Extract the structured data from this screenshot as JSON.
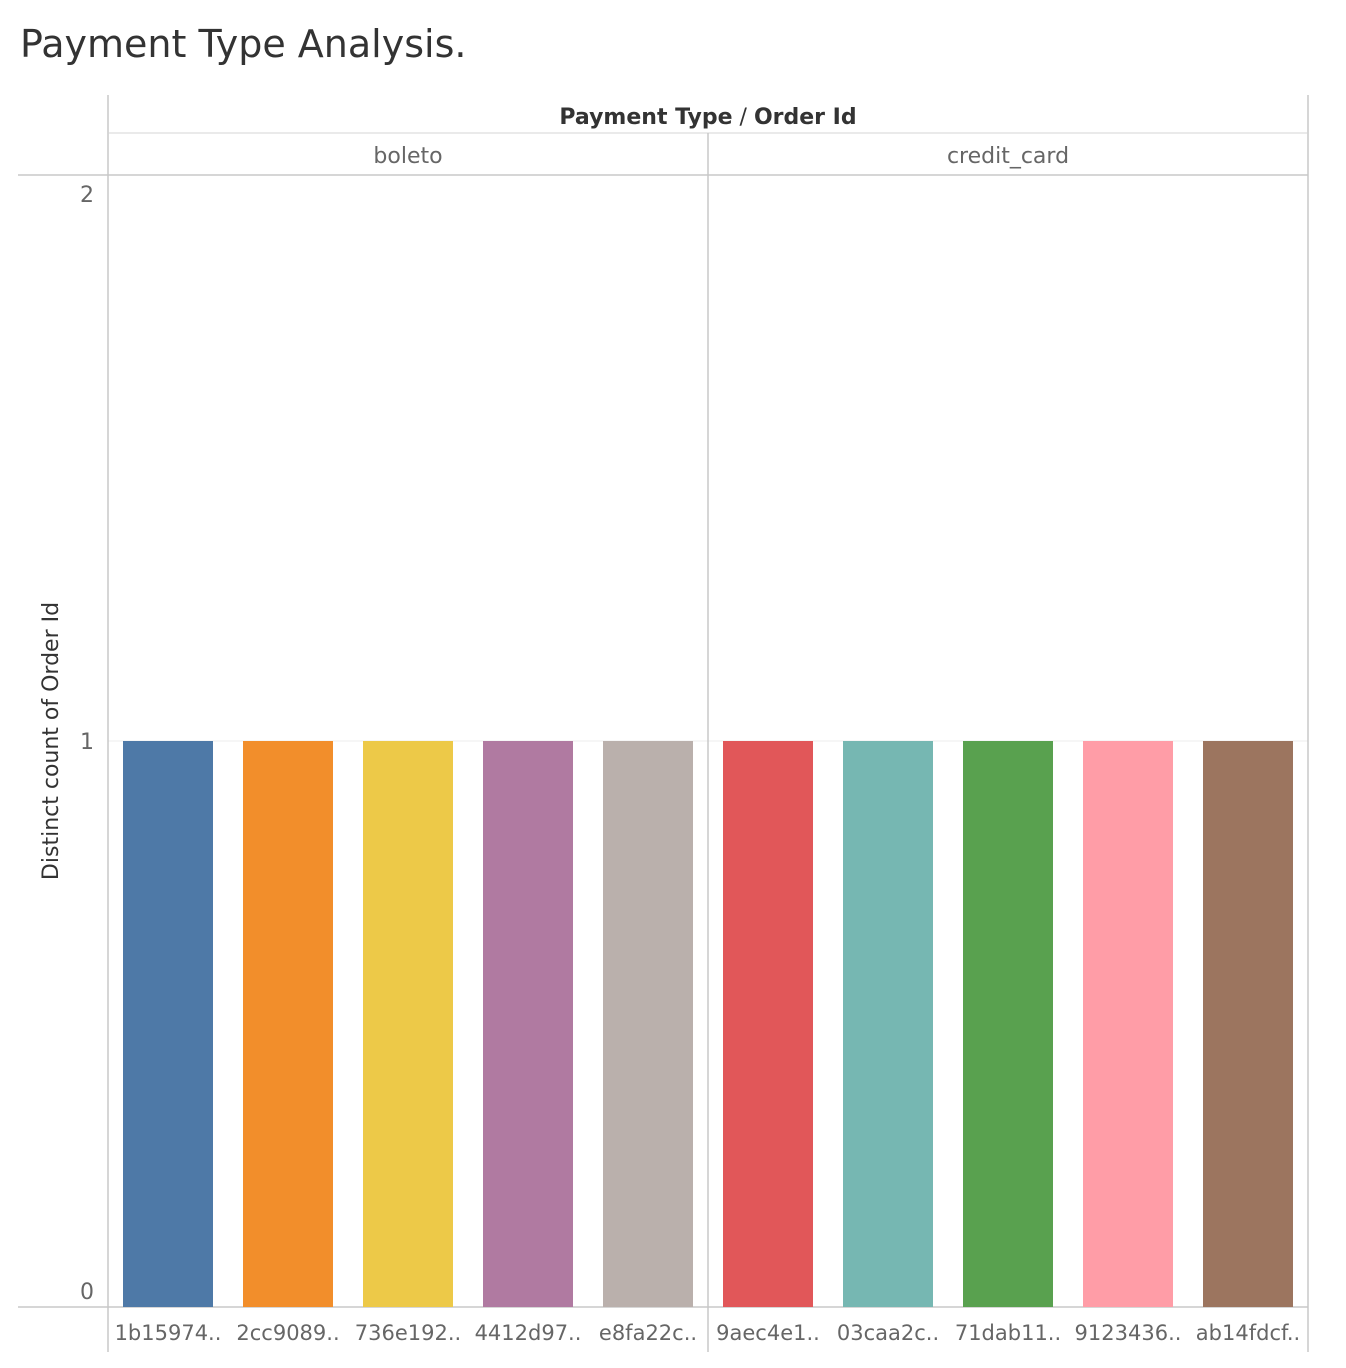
{
  "title": "Payment Type Analysis.",
  "chart_data": {
    "type": "bar",
    "header": {
      "field1": "Payment Type",
      "separator": "/",
      "field2": "Order Id"
    },
    "ylabel": "Distinct count of Order Id",
    "ylim": [
      0,
      2
    ],
    "yticks": [
      {
        "value": 0,
        "label": "0"
      },
      {
        "value": 1,
        "label": "1"
      },
      {
        "value": 2,
        "label": "2"
      }
    ],
    "grid": true,
    "panels": [
      {
        "name": "boleto",
        "categories": [
          "1b15974..",
          "2cc9089..",
          "736e192..",
          "4412d97..",
          "e8fa22c.."
        ],
        "values": [
          1,
          1,
          1,
          1,
          1
        ],
        "colors": [
          "#4e79a7",
          "#f28e2b",
          "#edc948",
          "#b07aa1",
          "#bab0ac"
        ]
      },
      {
        "name": "credit_card",
        "categories": [
          "9aec4e1..",
          "03caa2c..",
          "71dab11..",
          "9123436..",
          "ab14fdcf.."
        ],
        "values": [
          1,
          1,
          1,
          1,
          1
        ],
        "colors": [
          "#e15759",
          "#76b7b2",
          "#59a14f",
          "#ff9da7",
          "#9c755f"
        ]
      }
    ]
  }
}
